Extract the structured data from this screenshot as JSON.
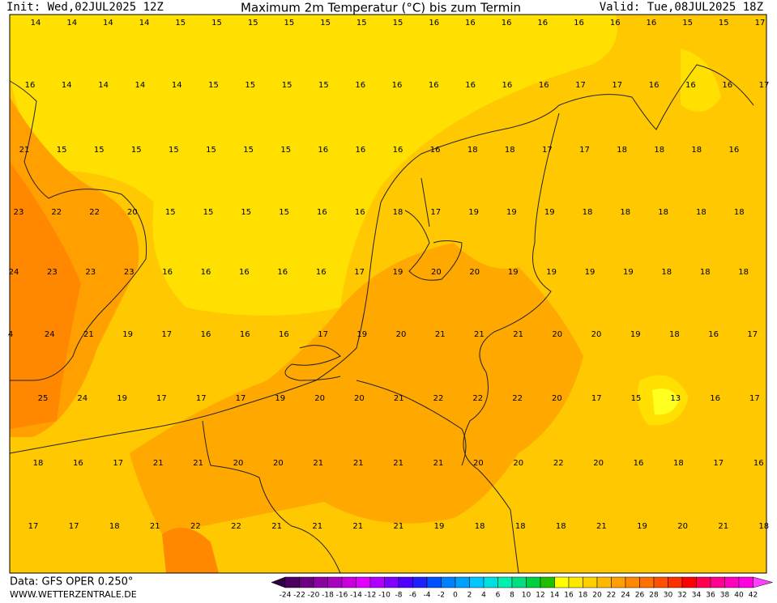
{
  "header": {
    "init": "Init: Wed,02JUL2025 12Z",
    "title": "Maximum 2m Temperatur (°C) bis zum Termin",
    "valid": "Valid: Tue,08JUL2025 18Z"
  },
  "footer": {
    "data": "Data: GFS OPER 0.250°",
    "site": "WWW.WETTERZENTRALE.DE"
  },
  "map": {
    "rows": [
      [
        14,
        14,
        14,
        14,
        15,
        15,
        15,
        15,
        15,
        15,
        15,
        16,
        16,
        16,
        16,
        16,
        16,
        16,
        15,
        15,
        17
      ],
      [
        16,
        14,
        14,
        14,
        14,
        15,
        15,
        15,
        15,
        16,
        16,
        16,
        16,
        16,
        16,
        17,
        17,
        16,
        16,
        16,
        17
      ],
      [
        21,
        15,
        15,
        15,
        15,
        15,
        15,
        15,
        16,
        16,
        16,
        16,
        18,
        18,
        17,
        17,
        18,
        18,
        18,
        16
      ],
      [
        23,
        22,
        22,
        20,
        15,
        15,
        15,
        15,
        16,
        16,
        18,
        17,
        19,
        19,
        19,
        18,
        18,
        18,
        18,
        18
      ],
      [
        24,
        23,
        23,
        23,
        16,
        16,
        16,
        16,
        16,
        17,
        19,
        20,
        20,
        19,
        19,
        19,
        19,
        18,
        18,
        18
      ],
      [
        4,
        24,
        21,
        19,
        17,
        16,
        16,
        16,
        17,
        19,
        20,
        21,
        21,
        21,
        20,
        20,
        19,
        18,
        16,
        17
      ],
      [
        25,
        24,
        19,
        17,
        17,
        17,
        19,
        20,
        20,
        21,
        22,
        22,
        22,
        20,
        17,
        15,
        13,
        16,
        17
      ],
      [
        18,
        16,
        17,
        21,
        21,
        20,
        20,
        21,
        21,
        21,
        21,
        20,
        20,
        22,
        20,
        16,
        18,
        17,
        16
      ],
      [
        17,
        17,
        18,
        21,
        22,
        22,
        21,
        21,
        21,
        21,
        19,
        18,
        18,
        18,
        21,
        19,
        20,
        21,
        18
      ]
    ]
  },
  "colorbar": {
    "labels": [
      -24,
      -22,
      -20,
      -18,
      -16,
      -14,
      -12,
      -10,
      -8,
      -6,
      -4,
      -2,
      0,
      2,
      4,
      6,
      8,
      10,
      12,
      14,
      16,
      18,
      20,
      22,
      24,
      26,
      28,
      30,
      32,
      34,
      36,
      38,
      40,
      42
    ],
    "colors": [
      "#4b0060",
      "#6a0080",
      "#8a00a0",
      "#aa00c0",
      "#c800e0",
      "#e000ff",
      "#b000ff",
      "#8000ff",
      "#5000ff",
      "#2020ff",
      "#0050ff",
      "#0080ff",
      "#00a0ff",
      "#00c8ff",
      "#00e0e0",
      "#00f0b0",
      "#00e080",
      "#00d040",
      "#20c000",
      "#ffff00",
      "#ffe800",
      "#ffd000",
      "#ffb800",
      "#ffa000",
      "#ff8800",
      "#ff7000",
      "#ff5000",
      "#ff3000",
      "#ff0000",
      "#ff0050",
      "#ff0090",
      "#ff00c0",
      "#ff00e0"
    ]
  }
}
